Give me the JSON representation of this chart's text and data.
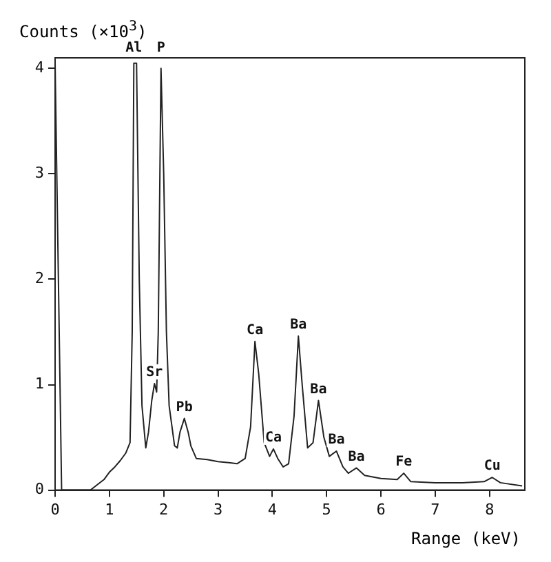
{
  "chart_data": {
    "type": "line",
    "xlabel": "Range (keV)",
    "ylabel": "Counts (×10$^{3}$)",
    "x": [
      0.0,
      0.12,
      0.4,
      0.65,
      0.7,
      0.9,
      1.0,
      1.1,
      1.2,
      1.3,
      1.38,
      1.42,
      1.45,
      1.5,
      1.55,
      1.6,
      1.67,
      1.72,
      1.78,
      1.83,
      1.87,
      1.9,
      1.95,
      2.0,
      2.05,
      2.1,
      2.2,
      2.25,
      2.3,
      2.38,
      2.45,
      2.5,
      2.6,
      2.8,
      3.0,
      3.2,
      3.35,
      3.5,
      3.6,
      3.68,
      3.75,
      3.85,
      3.95,
      4.02,
      4.1,
      4.2,
      4.3,
      4.4,
      4.48,
      4.55,
      4.65,
      4.75,
      4.85,
      4.95,
      5.05,
      5.18,
      5.3,
      5.4,
      5.55,
      5.7,
      6.0,
      6.3,
      6.42,
      6.55,
      7.0,
      7.5,
      7.9,
      8.05,
      8.2,
      8.6
    ],
    "series": [
      {
        "color": "#222222",
        "values": [
          4.05,
          0,
          0,
          0,
          0.02,
          0.1,
          0.17,
          0.22,
          0.28,
          0.35,
          0.45,
          1.5,
          4.05,
          4.05,
          2.0,
          0.8,
          0.4,
          0.55,
          0.85,
          1.01,
          0.93,
          1.5,
          4.0,
          3.0,
          1.5,
          0.8,
          0.42,
          0.4,
          0.55,
          0.68,
          0.55,
          0.42,
          0.3,
          0.29,
          0.27,
          0.26,
          0.25,
          0.3,
          0.6,
          1.41,
          1.1,
          0.45,
          0.32,
          0.39,
          0.3,
          0.22,
          0.25,
          0.7,
          1.46,
          1.0,
          0.4,
          0.45,
          0.85,
          0.5,
          0.32,
          0.37,
          0.22,
          0.16,
          0.21,
          0.14,
          0.11,
          0.1,
          0.16,
          0.08,
          0.07,
          0.07,
          0.08,
          0.12,
          0.07,
          0.04
        ]
      }
    ],
    "xlim": [
      0,
      8.65
    ],
    "ylim": [
      0,
      4.1
    ],
    "xticks": [
      0,
      1,
      2,
      3,
      4,
      5,
      6,
      7,
      8
    ],
    "yticks": [
      0,
      1,
      2,
      3,
      4
    ],
    "grid": false,
    "legend": false,
    "marker": "none",
    "line_style": "solid",
    "annotations": [
      {
        "text": "Al",
        "x": 1.45,
        "y": 4.05
      },
      {
        "text": "P",
        "x": 1.95,
        "y": 4.0
      },
      {
        "text": "Sr",
        "x": 1.83,
        "y": 1.01
      },
      {
        "text": "Pb",
        "x": 2.38,
        "y": 0.68
      },
      {
        "text": "Ca",
        "x": 3.68,
        "y": 1.41
      },
      {
        "text": "Ca",
        "x": 4.02,
        "y": 0.39
      },
      {
        "text": "Ba",
        "x": 4.48,
        "y": 1.46
      },
      {
        "text": "Ba",
        "x": 4.85,
        "y": 0.85
      },
      {
        "text": "Ba",
        "x": 5.18,
        "y": 0.37
      },
      {
        "text": "Ba",
        "x": 5.55,
        "y": 0.21
      },
      {
        "text": "Fe",
        "x": 6.42,
        "y": 0.16
      },
      {
        "text": "Cu",
        "x": 8.05,
        "y": 0.12
      }
    ]
  }
}
